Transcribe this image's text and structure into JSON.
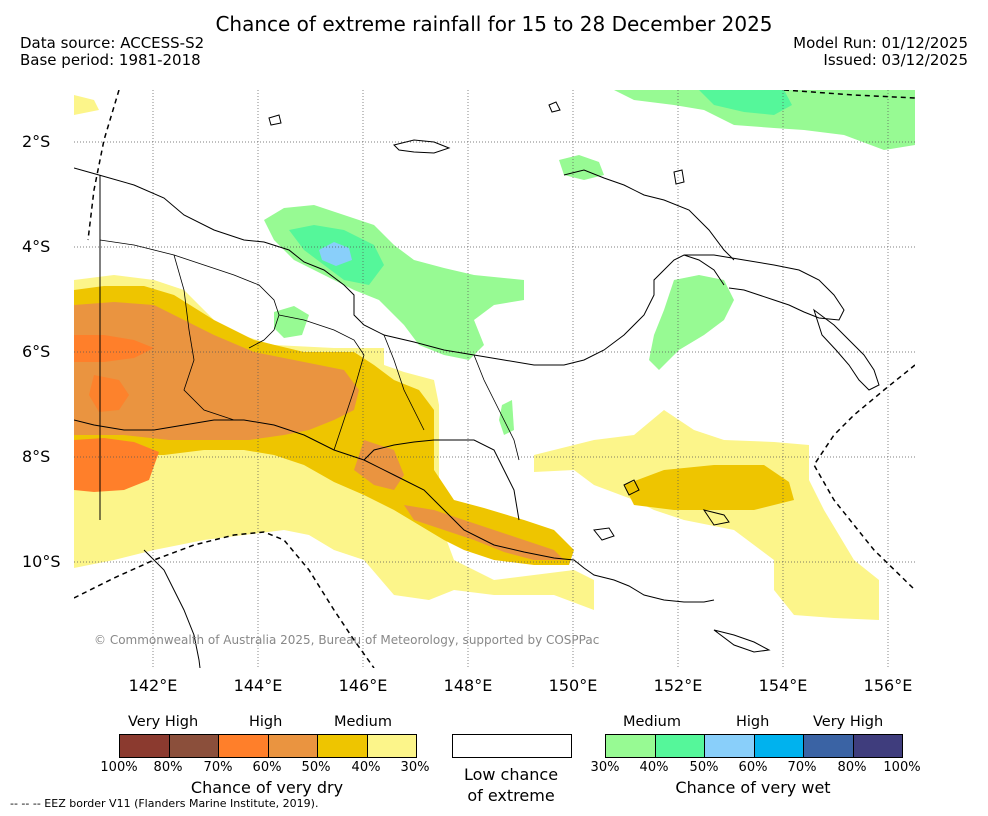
{
  "title": "Chance of extreme rainfall for 15 to 28 December 2025",
  "meta": {
    "data_source": "Data source: ACCESS-S2",
    "base_period": "Base period: 1981-2018",
    "model_run": "Model Run: 01/12/2025",
    "issued": "Issued: 03/12/2025"
  },
  "map": {
    "lon_ticks": [
      "142°E",
      "144°E",
      "146°E",
      "148°E",
      "150°E",
      "152°E",
      "154°E",
      "156°E"
    ],
    "lat_ticks": [
      "2°S",
      "4°S",
      "6°S",
      "8°S",
      "10°S"
    ],
    "copyright": "© Commonwealth of Australia 2025, Bureau of Meteorology, supported by COSPPac",
    "colors": {
      "dry_very_high_1": "#8b3a2f",
      "dry_very_high_2": "#8b4f3b",
      "dry_high_1": "#ff7f2a",
      "dry_high_2": "#ea9440",
      "dry_medium_1": "#eec500",
      "dry_medium_2": "#fcf58a",
      "wet_medium_1": "#97fa93",
      "wet_medium_2": "#55f79a",
      "wet_high_1": "#89cffa",
      "wet_high_2": "#00b2ee",
      "wet_very_high_1": "#3a63a4",
      "wet_very_high_2": "#3f3d7d"
    }
  },
  "legend": {
    "dry": {
      "cat_very_high": "Very High",
      "cat_high": "High",
      "cat_medium": "Medium",
      "ticks": [
        "100%",
        "80%",
        "70%",
        "60%",
        "50%",
        "40%",
        "30%"
      ],
      "title": "Chance of very dry"
    },
    "low": {
      "line1": "Low chance",
      "line2": "of extreme"
    },
    "wet": {
      "cat_medium": "Medium",
      "cat_high": "High",
      "cat_very_high": "Very High",
      "ticks": [
        "30%",
        "40%",
        "50%",
        "60%",
        "70%",
        "80%",
        "100%"
      ],
      "title": "Chance of very wet"
    }
  },
  "footnote": "--  --  -- EEZ border V11 (Flanders Marine Institute, 2019)."
}
